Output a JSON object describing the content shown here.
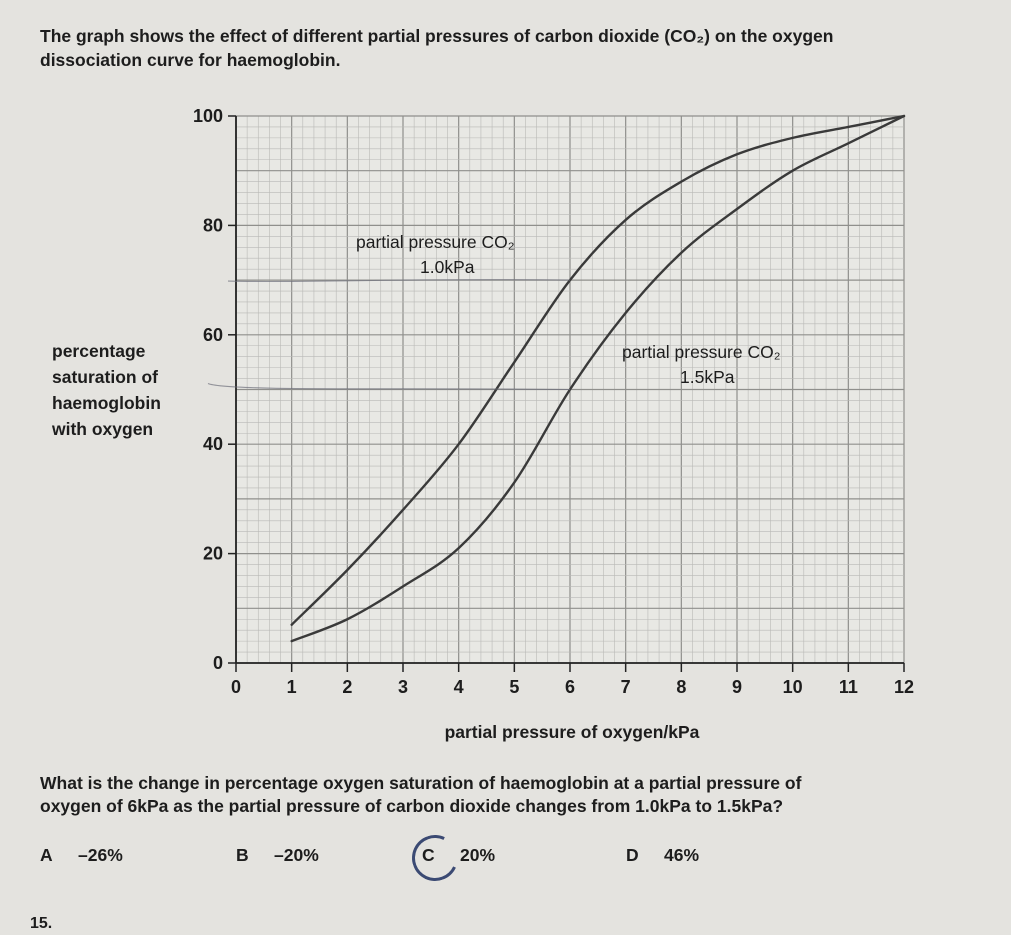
{
  "intro": {
    "line1": "The graph shows the effect of different partial pressures of carbon dioxide (CO₂) on the oxygen",
    "line2": "dissociation curve for haemoglobin."
  },
  "chart_data": {
    "type": "line",
    "title": "",
    "xlabel": "partial pressure of oxygen/kPa",
    "ylabel_lines": [
      "percentage",
      "saturation of",
      "haemoglobin",
      "with oxygen"
    ],
    "xlim": [
      0,
      12
    ],
    "ylim": [
      0,
      100
    ],
    "x_ticks": [
      "0",
      "1",
      "2",
      "3",
      "4",
      "5",
      "6",
      "7",
      "8",
      "9",
      "10",
      "11",
      "12"
    ],
    "y_ticks": [
      "0",
      "20",
      "40",
      "60",
      "80",
      "100"
    ],
    "grid": true,
    "series": [
      {
        "name": "partial pressure CO₂ 1.0kPa",
        "label_line1": "partial pressure CO₂",
        "label_line2": "1.0kPa",
        "x": [
          1,
          2,
          3,
          4,
          5,
          6,
          7,
          8,
          9,
          10,
          11,
          12
        ],
        "y": [
          7,
          17,
          28,
          40,
          55,
          70,
          81,
          88,
          93,
          96,
          98,
          100
        ]
      },
      {
        "name": "partial pressure CO₂ 1.5kPa",
        "label_line1": "partial pressure CO₂",
        "label_line2": "1.5kPa",
        "x": [
          1,
          2,
          3,
          4,
          5,
          6,
          7,
          8,
          9,
          10,
          11,
          12
        ],
        "y": [
          4,
          8,
          14,
          21,
          33,
          50,
          64,
          75,
          83,
          90,
          95,
          100
        ]
      }
    ],
    "colors": {
      "background": "#e4e3df",
      "grid_minor": "#b9b9b6",
      "grid_major": "#8f8f8c",
      "line": "#3a3a3a"
    }
  },
  "question": {
    "line1": "What is the change in percentage oxygen saturation of haemoglobin at a partial pressure of",
    "line2": "oxygen of 6kPa as the partial pressure of carbon dioxide changes from 1.0kPa to 1.5kPa?"
  },
  "options": [
    {
      "letter": "A",
      "value": "–26%"
    },
    {
      "letter": "B",
      "value": "–20%"
    },
    {
      "letter": "C",
      "value": "20%"
    },
    {
      "letter": "D",
      "value": "46%"
    }
  ],
  "question_number": "15."
}
